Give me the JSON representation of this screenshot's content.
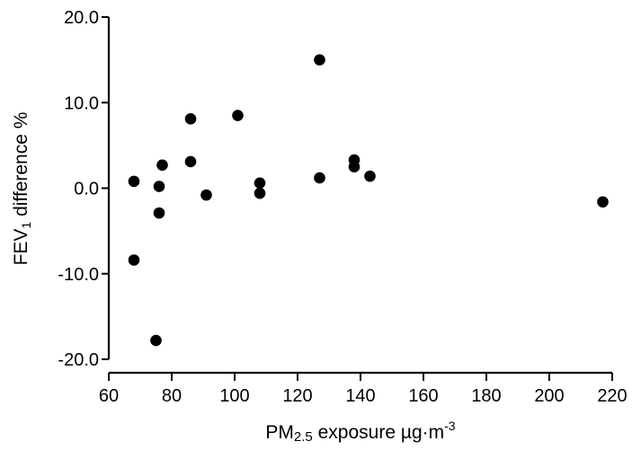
{
  "chart_data": {
    "type": "scatter",
    "xlabel": "PM2.5 exposure µg·m-3",
    "xlabel_parts": {
      "main": "PM",
      "sub": "2.5",
      "rest": " exposure µg·m",
      "sup": "-3"
    },
    "ylabel": "FEV1 difference %",
    "ylabel_parts": {
      "main": "FEV",
      "sub": "1",
      "rest": " difference %"
    },
    "xlim": [
      60,
      220
    ],
    "ylim": [
      -20,
      20
    ],
    "xticks": [
      "60",
      "80",
      "100",
      "120",
      "140",
      "160",
      "180",
      "200",
      "220"
    ],
    "yticks": [
      "20.0",
      "10.0",
      "0.0",
      "-10.0",
      "-20.0"
    ],
    "grid": false,
    "legend": "none",
    "point_color": "#000000",
    "points": [
      {
        "x": 68,
        "y": 0.8
      },
      {
        "x": 68,
        "y": -8.4
      },
      {
        "x": 75,
        "y": -17.8
      },
      {
        "x": 76,
        "y": 0.2
      },
      {
        "x": 76,
        "y": -2.9
      },
      {
        "x": 77,
        "y": 2.7
      },
      {
        "x": 86,
        "y": 8.1
      },
      {
        "x": 86,
        "y": 3.1
      },
      {
        "x": 91,
        "y": -0.8
      },
      {
        "x": 101,
        "y": 8.5
      },
      {
        "x": 108,
        "y": 0.6
      },
      {
        "x": 108,
        "y": -0.6
      },
      {
        "x": 127,
        "y": 15.0
      },
      {
        "x": 127,
        "y": 1.2
      },
      {
        "x": 138,
        "y": 3.3
      },
      {
        "x": 138,
        "y": 2.5
      },
      {
        "x": 143,
        "y": 1.4
      },
      {
        "x": 217,
        "y": -1.6
      }
    ]
  }
}
